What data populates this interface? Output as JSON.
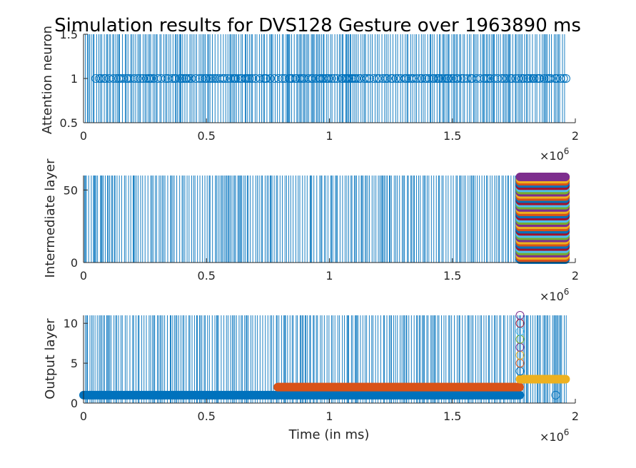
{
  "figure": {
    "title": "Simulation results for DVS128 Gesture over 1963890 ms"
  },
  "chart_data": [
    {
      "type": "scatter",
      "ylabel": "Attention neuron",
      "xlim": [
        0,
        2000000
      ],
      "ylim": [
        0.5,
        1.5
      ],
      "x_ticks": [
        0,
        500000,
        1000000,
        1500000,
        2000000
      ],
      "x_tick_labels": [
        "0",
        "0.5",
        "1",
        "1.5",
        "2"
      ],
      "y_ticks": [
        0.5,
        1,
        1.5
      ],
      "y_tick_labels": [
        "0.5",
        "1",
        "1.5"
      ],
      "x_exponent": "×10",
      "x_exponent_power": "6",
      "spike_lines": {
        "color": "#0072bd",
        "x_start": 0,
        "x_end": 1963890
      },
      "series": [
        {
          "color": "#0072bd",
          "marker": "open-circle",
          "y": 1,
          "x_start": 50000,
          "x_end": 1963890
        }
      ]
    },
    {
      "type": "scatter",
      "ylabel": "Intermediate layer",
      "xlim": [
        0,
        2000000
      ],
      "ylim": [
        0,
        60
      ],
      "x_ticks": [
        0,
        500000,
        1000000,
        1500000,
        2000000
      ],
      "x_tick_labels": [
        "0",
        "0.5",
        "1",
        "1.5",
        "2"
      ],
      "y_ticks": [
        0,
        50
      ],
      "y_tick_labels": [
        "0",
        "50"
      ],
      "x_exponent": "×10",
      "x_exponent_power": "6",
      "spike_lines": {
        "color": "#0072bd",
        "x_start": 0,
        "x_end": 1963890
      },
      "series": [
        {
          "marker": "filled-circle",
          "x_start": 1775000,
          "x_end": 1963890,
          "y_min": 0,
          "y_max": 60,
          "colors": [
            "#0072bd",
            "#d95319",
            "#edb120",
            "#7e2f8e",
            "#77ac30",
            "#4dbeee",
            "#a2142f"
          ]
        }
      ]
    },
    {
      "type": "scatter",
      "ylabel": "Output layer",
      "xlabel": "Time (in ms)",
      "xlim": [
        0,
        2000000
      ],
      "ylim": [
        0,
        11
      ],
      "x_ticks": [
        0,
        500000,
        1000000,
        1500000,
        2000000
      ],
      "x_tick_labels": [
        "0",
        "0.5",
        "1",
        "1.5",
        "2"
      ],
      "y_ticks": [
        0,
        5,
        10
      ],
      "y_tick_labels": [
        "0",
        "5",
        "10"
      ],
      "x_exponent": "×10",
      "x_exponent_power": "6",
      "spike_lines": {
        "color": "#0072bd",
        "x_start": 0,
        "x_end": 1963890
      },
      "series": [
        {
          "color": "#0072bd",
          "marker": "filled-circle",
          "y": 1,
          "x_start": 0,
          "x_end": 1775000
        },
        {
          "color": "#d95319",
          "marker": "filled-circle",
          "y": 2,
          "x_start": 790000,
          "x_end": 1775000
        },
        {
          "color": "#edb120",
          "marker": "filled-circle",
          "y": 3,
          "x_start": 1775000,
          "x_end": 1963890
        },
        {
          "color": "#0072bd",
          "marker": "open-circle",
          "y": 1,
          "x": [
            1920000
          ]
        },
        {
          "marker": "open-circle",
          "x": [
            1775000
          ],
          "y_values": [
            4,
            5,
            6,
            7,
            8,
            9,
            10,
            11
          ],
          "colors": [
            "#0072bd",
            "#d95319",
            "#edb120",
            "#7e2f8e",
            "#77ac30",
            "#4dbeee",
            "#a2142f",
            "#7e2f8e"
          ]
        }
      ]
    }
  ]
}
